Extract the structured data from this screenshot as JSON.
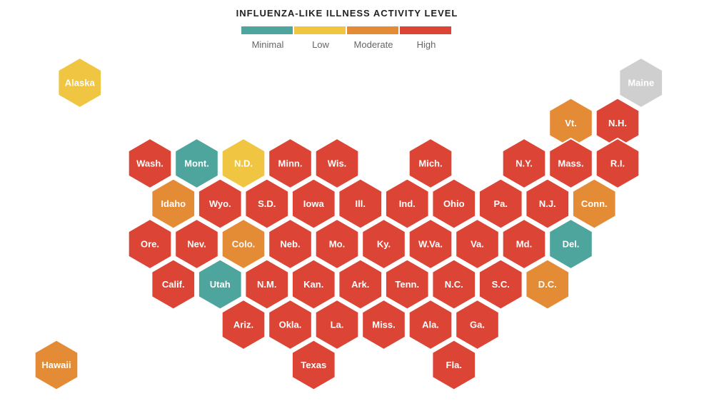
{
  "legend": {
    "title": "INFLUENZA-LIKE ILLNESS ACTIVITY LEVEL",
    "levels": [
      {
        "label": "Minimal",
        "color": "#4ea59d"
      },
      {
        "label": "Low",
        "color": "#f0c541"
      },
      {
        "label": "Moderate",
        "color": "#e48b35"
      },
      {
        "label": "High",
        "color": "#dc4436"
      }
    ],
    "no_data_color": "#cfcfcf"
  },
  "states": [
    {
      "label": "Alaska",
      "level": "Low",
      "row": 0,
      "col": 1.5
    },
    {
      "label": "Maine",
      "level": "none",
      "row": 0,
      "col": 13.5
    },
    {
      "label": "Vt.",
      "level": "Moderate",
      "row": 1,
      "col": 12
    },
    {
      "label": "N.H.",
      "level": "High",
      "row": 1,
      "col": 13
    },
    {
      "label": "Wash.",
      "level": "High",
      "row": 2,
      "col": 3
    },
    {
      "label": "Mont.",
      "level": "Minimal",
      "row": 2,
      "col": 4
    },
    {
      "label": "N.D.",
      "level": "Low",
      "row": 2,
      "col": 5
    },
    {
      "label": "Minn.",
      "level": "High",
      "row": 2,
      "col": 6
    },
    {
      "label": "Wis.",
      "level": "High",
      "row": 2,
      "col": 7
    },
    {
      "label": "Mich.",
      "level": "High",
      "row": 2,
      "col": 9
    },
    {
      "label": "N.Y.",
      "level": "High",
      "row": 2,
      "col": 11
    },
    {
      "label": "Mass.",
      "level": "High",
      "row": 2,
      "col": 12
    },
    {
      "label": "R.I.",
      "level": "High",
      "row": 2,
      "col": 13
    },
    {
      "label": "Idaho",
      "level": "Moderate",
      "row": 3,
      "col": 3.5
    },
    {
      "label": "Wyo.",
      "level": "High",
      "row": 3,
      "col": 4.5
    },
    {
      "label": "S.D.",
      "level": "High",
      "row": 3,
      "col": 5.5
    },
    {
      "label": "Iowa",
      "level": "High",
      "row": 3,
      "col": 6.5
    },
    {
      "label": "Ill.",
      "level": "High",
      "row": 3,
      "col": 7.5
    },
    {
      "label": "Ind.",
      "level": "High",
      "row": 3,
      "col": 8.5
    },
    {
      "label": "Ohio",
      "level": "High",
      "row": 3,
      "col": 9.5
    },
    {
      "label": "Pa.",
      "level": "High",
      "row": 3,
      "col": 10.5
    },
    {
      "label": "N.J.",
      "level": "High",
      "row": 3,
      "col": 11.5
    },
    {
      "label": "Conn.",
      "level": "Moderate",
      "row": 3,
      "col": 12.5
    },
    {
      "label": "Ore.",
      "level": "High",
      "row": 4,
      "col": 3
    },
    {
      "label": "Nev.",
      "level": "High",
      "row": 4,
      "col": 4
    },
    {
      "label": "Colo.",
      "level": "Moderate",
      "row": 4,
      "col": 5
    },
    {
      "label": "Neb.",
      "level": "High",
      "row": 4,
      "col": 6
    },
    {
      "label": "Mo.",
      "level": "High",
      "row": 4,
      "col": 7
    },
    {
      "label": "Ky.",
      "level": "High",
      "row": 4,
      "col": 8
    },
    {
      "label": "W.Va.",
      "level": "High",
      "row": 4,
      "col": 9
    },
    {
      "label": "Va.",
      "level": "High",
      "row": 4,
      "col": 10
    },
    {
      "label": "Md.",
      "level": "High",
      "row": 4,
      "col": 11
    },
    {
      "label": "Del.",
      "level": "Minimal",
      "row": 4,
      "col": 12
    },
    {
      "label": "Calif.",
      "level": "High",
      "row": 5,
      "col": 3.5
    },
    {
      "label": "Utah",
      "level": "Minimal",
      "row": 5,
      "col": 4.5
    },
    {
      "label": "N.M.",
      "level": "High",
      "row": 5,
      "col": 5.5
    },
    {
      "label": "Kan.",
      "level": "High",
      "row": 5,
      "col": 6.5
    },
    {
      "label": "Ark.",
      "level": "High",
      "row": 5,
      "col": 7.5
    },
    {
      "label": "Tenn.",
      "level": "High",
      "row": 5,
      "col": 8.5
    },
    {
      "label": "N.C.",
      "level": "High",
      "row": 5,
      "col": 9.5
    },
    {
      "label": "S.C.",
      "level": "High",
      "row": 5,
      "col": 10.5
    },
    {
      "label": "D.C.",
      "level": "Moderate",
      "row": 5,
      "col": 11.5
    },
    {
      "label": "Ariz.",
      "level": "High",
      "row": 6,
      "col": 5
    },
    {
      "label": "Okla.",
      "level": "High",
      "row": 6,
      "col": 6
    },
    {
      "label": "La.",
      "level": "High",
      "row": 6,
      "col": 7
    },
    {
      "label": "Miss.",
      "level": "High",
      "row": 6,
      "col": 8
    },
    {
      "label": "Ala.",
      "level": "High",
      "row": 6,
      "col": 9
    },
    {
      "label": "Ga.",
      "level": "High",
      "row": 6,
      "col": 10
    },
    {
      "label": "Hawaii",
      "level": "Moderate",
      "row": 7,
      "col": 1
    },
    {
      "label": "Texas",
      "level": "High",
      "row": 7,
      "col": 6.5
    },
    {
      "label": "Fla.",
      "level": "High",
      "row": 7,
      "col": 9.5
    }
  ]
}
